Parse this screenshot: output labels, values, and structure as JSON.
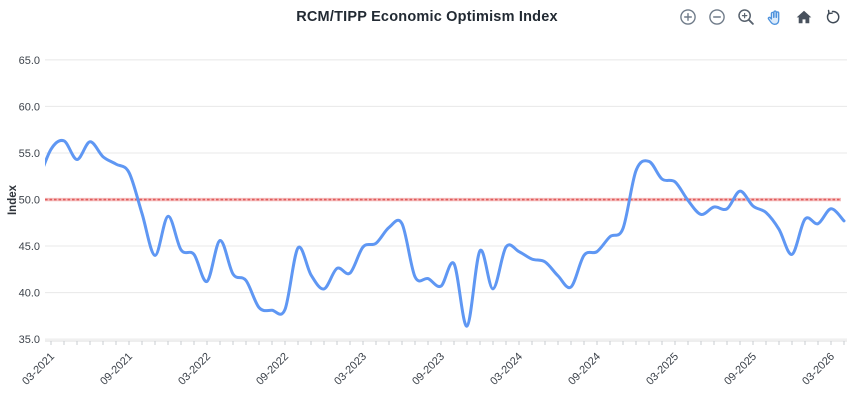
{
  "header": {
    "title_note": "title lives in chart_data.title"
  },
  "toolbar": {
    "buttons": [
      {
        "name": "zoom-in"
      },
      {
        "name": "zoom-out"
      },
      {
        "name": "zoom-box-select"
      },
      {
        "name": "pan",
        "active": true
      },
      {
        "name": "home"
      },
      {
        "name": "reset-view"
      }
    ],
    "icon_color": "#6e7a88",
    "icon_dark_color": "#48515d",
    "active_color": "#4f93dd"
  },
  "chart_data": {
    "type": "line",
    "title": "RCM/TIPP Economic Optimism Index",
    "xlabel": "",
    "ylabel": "Index",
    "curve": "smooth",
    "grid": true,
    "legend": false,
    "ylim": [
      34.8,
      66.6
    ],
    "y_ticks": [
      {
        "value": 65,
        "label": "65.0"
      },
      {
        "value": 60,
        "label": "60.0"
      },
      {
        "value": 55,
        "label": "55.0"
      },
      {
        "value": 50,
        "label": "50.0"
      },
      {
        "value": 45,
        "label": "45.0"
      },
      {
        "value": 40,
        "label": "40.0"
      },
      {
        "value": 35,
        "label": "35.0"
      }
    ],
    "x_major_tick_every_months": 6,
    "x_minor_tick_every_months": 1,
    "x_tick_labels": [
      "03-2021",
      "09-2021",
      "03-2022",
      "09-2022",
      "03-2023",
      "09-2023",
      "03-2024",
      "09-2024",
      "03-2025",
      "09-2025",
      "03-2026"
    ],
    "x": [
      "02-2021",
      "03-2021",
      "04-2021",
      "05-2021",
      "06-2021",
      "07-2021",
      "08-2021",
      "09-2021",
      "10-2021",
      "11-2021",
      "12-2021",
      "01-2022",
      "02-2022",
      "03-2022",
      "04-2022",
      "05-2022",
      "06-2022",
      "07-2022",
      "08-2022",
      "09-2022",
      "10-2022",
      "11-2022",
      "12-2022",
      "01-2023",
      "02-2023",
      "03-2023",
      "04-2023",
      "05-2023",
      "06-2023",
      "07-2023",
      "08-2023",
      "09-2023",
      "10-2023",
      "11-2023",
      "12-2023",
      "01-2024",
      "02-2024",
      "03-2024",
      "04-2024",
      "05-2024",
      "06-2024",
      "07-2024",
      "08-2024",
      "09-2024",
      "10-2024",
      "11-2024",
      "12-2024",
      "01-2025",
      "02-2025",
      "03-2025",
      "04-2025",
      "05-2025",
      "06-2025",
      "07-2025",
      "08-2025",
      "09-2025",
      "10-2025",
      "11-2025",
      "12-2025",
      "01-2026",
      "02-2026",
      "03-2026",
      "04-2026"
    ],
    "values": [
      51.9,
      55.4,
      56.3,
      54.3,
      56.2,
      54.6,
      53.8,
      52.9,
      48.5,
      44.0,
      48.2,
      44.6,
      44.1,
      41.2,
      45.6,
      42.0,
      41.3,
      38.4,
      38.1,
      38.2,
      44.8,
      41.9,
      40.4,
      42.6,
      42.1,
      44.9,
      45.3,
      47.0,
      47.4,
      41.7,
      41.5,
      40.7,
      43.1,
      36.4,
      44.5,
      40.4,
      44.9,
      44.4,
      43.6,
      43.3,
      41.8,
      40.6,
      44.0,
      44.4,
      46.0,
      46.9,
      53.1,
      54.1,
      52.2,
      51.9,
      49.9,
      48.4,
      49.2,
      49.0,
      50.9,
      49.3,
      48.6,
      46.8,
      44.1,
      47.9,
      47.4,
      49.0,
      47.7
    ],
    "series_color": "#5f97f3",
    "reference_line": {
      "value": 50.0,
      "label": "50.0",
      "style": "dashed",
      "color": "#e05c5c",
      "halo_color": "#f5bcbc"
    },
    "grid_color": "#e8e8e8",
    "axis_line_color": "#dcdcdc",
    "tick_color": "#c9ccd0"
  }
}
